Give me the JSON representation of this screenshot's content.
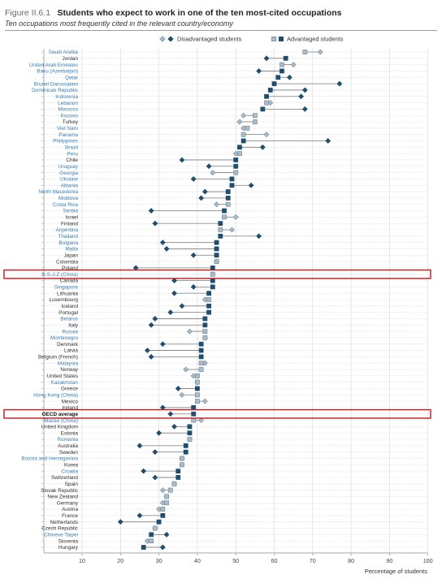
{
  "figure": {
    "label": "Figure II.6.1",
    "title": "Students who expect to work in one of the ten most-cited occupations",
    "subtitle": "Ten occupations most frequently cited in the relevant country/economy"
  },
  "colors": {
    "advantaged": "#1f4e6e",
    "disadvantaged": "#1f4e6e",
    "advantaged_light": "#a9bccb",
    "disadvantaged_light": "#a9bccb",
    "highlight_box": "#c0171f",
    "label_highlight": "#3a7fb5"
  },
  "chart_data": {
    "type": "scatter",
    "orientation": "horizontal-dot-plot",
    "title": "Students who expect to work in one of the ten most-cited occupations",
    "subtitle": "Ten occupations most frequently cited in the relevant country/economy",
    "xlabel": "Percentage of students",
    "ylabel": "",
    "xlim": [
      0,
      100
    ],
    "xticks": [
      10,
      20,
      30,
      40,
      50,
      60,
      70,
      80,
      90,
      100
    ],
    "grid": "horizontal dotted",
    "legend": {
      "placement": "top-center",
      "entries": [
        {
          "key": "dis",
          "label": "Disadvantaged students"
        },
        {
          "key": "adv",
          "label": "Advantaged students"
        }
      ]
    },
    "highlighted_rows": [
      "B-S-J-Z (China)",
      "OECD average"
    ],
    "rows": [
      {
        "name": "Saudi Arabia",
        "adv": 68,
        "dis": 72,
        "sig": false,
        "hl": true
      },
      {
        "name": "Jordan",
        "adv": 63,
        "dis": 58,
        "sig": true,
        "hl": false
      },
      {
        "name": "United Arab Emirates",
        "adv": 62,
        "dis": 65,
        "sig": false,
        "hl": true
      },
      {
        "name": "Baku (Azerbaijan)",
        "adv": 62,
        "dis": 56,
        "sig": true,
        "hl": true
      },
      {
        "name": "Qatar",
        "adv": 61,
        "dis": 64,
        "sig": true,
        "hl": true
      },
      {
        "name": "Brunei Darussalam",
        "adv": 60,
        "dis": 77,
        "sig": true,
        "hl": true
      },
      {
        "name": "Dominican Republic",
        "adv": 59,
        "dis": 68,
        "sig": true,
        "hl": true
      },
      {
        "name": "Indonesia",
        "adv": 58,
        "dis": 67,
        "sig": true,
        "hl": true
      },
      {
        "name": "Lebanon",
        "adv": 58,
        "dis": 59,
        "sig": false,
        "hl": true
      },
      {
        "name": "Morocco",
        "adv": 57,
        "dis": 68,
        "sig": true,
        "hl": true
      },
      {
        "name": "Kosovo",
        "adv": 55,
        "dis": 52,
        "sig": false,
        "hl": true
      },
      {
        "name": "Turkey",
        "adv": 55,
        "dis": 51,
        "sig": false,
        "hl": false
      },
      {
        "name": "Viet Nam",
        "adv": 53,
        "dis": 52,
        "sig": false,
        "hl": true
      },
      {
        "name": "Panama",
        "adv": 52,
        "dis": 58,
        "sig": false,
        "hl": true
      },
      {
        "name": "Philippines",
        "adv": 52,
        "dis": 74,
        "sig": true,
        "hl": true
      },
      {
        "name": "Brazil",
        "adv": 51,
        "dis": 57,
        "sig": true,
        "hl": true
      },
      {
        "name": "Peru",
        "adv": 51,
        "dis": 50,
        "sig": false,
        "hl": true
      },
      {
        "name": "Chile",
        "adv": 50,
        "dis": 36,
        "sig": true,
        "hl": false
      },
      {
        "name": "Uruguay",
        "adv": 50,
        "dis": 43,
        "sig": true,
        "hl": true
      },
      {
        "name": "Georgia",
        "adv": 50,
        "dis": 44,
        "sig": false,
        "hl": true
      },
      {
        "name": "Ukraine",
        "adv": 49,
        "dis": 39,
        "sig": true,
        "hl": true
      },
      {
        "name": "Albania",
        "adv": 49,
        "dis": 54,
        "sig": true,
        "hl": true
      },
      {
        "name": "North Macedonia",
        "adv": 48,
        "dis": 42,
        "sig": true,
        "hl": true
      },
      {
        "name": "Moldova",
        "adv": 48,
        "dis": 41,
        "sig": true,
        "hl": true
      },
      {
        "name": "Costa Rica",
        "adv": 48,
        "dis": 45,
        "sig": false,
        "hl": true
      },
      {
        "name": "Serbia",
        "adv": 47,
        "dis": 28,
        "sig": true,
        "hl": true
      },
      {
        "name": "Israel",
        "adv": 47,
        "dis": 50,
        "sig": false,
        "hl": false
      },
      {
        "name": "Finland",
        "adv": 46,
        "dis": 29,
        "sig": true,
        "hl": false
      },
      {
        "name": "Argentina",
        "adv": 46,
        "dis": 49,
        "sig": false,
        "hl": true
      },
      {
        "name": "Thailand",
        "adv": 46,
        "dis": 56,
        "sig": true,
        "hl": true
      },
      {
        "name": "Bulgaria",
        "adv": 45,
        "dis": 31,
        "sig": true,
        "hl": true
      },
      {
        "name": "Malta",
        "adv": 45,
        "dis": 32,
        "sig": true,
        "hl": true
      },
      {
        "name": "Japan",
        "adv": 45,
        "dis": 39,
        "sig": true,
        "hl": false
      },
      {
        "name": "Colombia",
        "adv": 45,
        "dis": 45,
        "sig": false,
        "hl": false
      },
      {
        "name": "Poland",
        "adv": 44,
        "dis": 24,
        "sig": true,
        "hl": false
      },
      {
        "name": "B-S-J-Z (China)",
        "adv": 44,
        "dis": 44,
        "sig": false,
        "hl": true
      },
      {
        "name": "Canada",
        "adv": 44,
        "dis": 34,
        "sig": true,
        "hl": false
      },
      {
        "name": "Singapore",
        "adv": 44,
        "dis": 39,
        "sig": true,
        "hl": true
      },
      {
        "name": "Lithuania",
        "adv": 43,
        "dis": 34,
        "sig": true,
        "hl": false
      },
      {
        "name": "Luxembourg",
        "adv": 43,
        "dis": 42,
        "sig": false,
        "hl": false
      },
      {
        "name": "Iceland",
        "adv": 43,
        "dis": 36,
        "sig": true,
        "hl": false
      },
      {
        "name": "Portugal",
        "adv": 43,
        "dis": 33,
        "sig": true,
        "hl": false
      },
      {
        "name": "Belarus",
        "adv": 42,
        "dis": 29,
        "sig": true,
        "hl": true
      },
      {
        "name": "Italy",
        "adv": 42,
        "dis": 28,
        "sig": true,
        "hl": false
      },
      {
        "name": "Russia",
        "adv": 42,
        "dis": 38,
        "sig": false,
        "hl": true
      },
      {
        "name": "Montenegro",
        "adv": 42,
        "dis": 42,
        "sig": false,
        "hl": true
      },
      {
        "name": "Denmark",
        "adv": 41,
        "dis": 31,
        "sig": true,
        "hl": false
      },
      {
        "name": "Latvia",
        "adv": 41,
        "dis": 27,
        "sig": true,
        "hl": false
      },
      {
        "name": "Belgium (French)",
        "adv": 41,
        "dis": 28,
        "sig": true,
        "hl": false
      },
      {
        "name": "Malaysia",
        "adv": 41,
        "dis": 42,
        "sig": false,
        "hl": true
      },
      {
        "name": "Norway",
        "adv": 41,
        "dis": 37,
        "sig": false,
        "hl": false
      },
      {
        "name": "United States",
        "adv": 40,
        "dis": 39,
        "sig": false,
        "hl": false
      },
      {
        "name": "Kazakhstan",
        "adv": 40,
        "dis": 40,
        "sig": false,
        "hl": true
      },
      {
        "name": "Greece",
        "adv": 40,
        "dis": 35,
        "sig": true,
        "hl": false
      },
      {
        "name": "Hong Kong (China)",
        "adv": 40,
        "dis": 36,
        "sig": false,
        "hl": true
      },
      {
        "name": "Mexico",
        "adv": 40,
        "dis": 42,
        "sig": false,
        "hl": false
      },
      {
        "name": "Ireland",
        "adv": 39,
        "dis": 31,
        "sig": true,
        "hl": false
      },
      {
        "name": "OECD average",
        "adv": 39,
        "dis": 33,
        "sig": true,
        "hl": false,
        "bold": true
      },
      {
        "name": "Macao (China)",
        "adv": 39,
        "dis": 41,
        "sig": false,
        "hl": true
      },
      {
        "name": "United Kingdom",
        "adv": 38,
        "dis": 34,
        "sig": true,
        "hl": false
      },
      {
        "name": "Estonia",
        "adv": 38,
        "dis": 30,
        "sig": true,
        "hl": false
      },
      {
        "name": "Romania",
        "adv": 38,
        "dis": 38,
        "sig": false,
        "hl": true
      },
      {
        "name": "Australia",
        "adv": 37,
        "dis": 25,
        "sig": true,
        "hl": false
      },
      {
        "name": "Sweden",
        "adv": 37,
        "dis": 29,
        "sig": true,
        "hl": false
      },
      {
        "name": "Bosnia and Herzegovina",
        "adv": 36,
        "dis": 36,
        "sig": false,
        "hl": true
      },
      {
        "name": "Korea",
        "adv": 36,
        "dis": 36,
        "sig": false,
        "hl": false
      },
      {
        "name": "Croatia",
        "adv": 35,
        "dis": 26,
        "sig": true,
        "hl": true
      },
      {
        "name": "Switzerland",
        "adv": 35,
        "dis": 29,
        "sig": true,
        "hl": false
      },
      {
        "name": "Spain",
        "adv": 34,
        "dis": 34,
        "sig": false,
        "hl": false
      },
      {
        "name": "Slovak Republic",
        "adv": 33,
        "dis": 31,
        "sig": false,
        "hl": false
      },
      {
        "name": "New Zealand",
        "adv": 32,
        "dis": 32,
        "sig": false,
        "hl": false
      },
      {
        "name": "Germany",
        "adv": 32,
        "dis": 31,
        "sig": false,
        "hl": false
      },
      {
        "name": "Austria",
        "adv": 31,
        "dis": 30,
        "sig": false,
        "hl": false
      },
      {
        "name": "France",
        "adv": 31,
        "dis": 25,
        "sig": true,
        "hl": false
      },
      {
        "name": "Netherlands",
        "adv": 30,
        "dis": 20,
        "sig": true,
        "hl": false
      },
      {
        "name": "Czech Republic",
        "adv": 29,
        "dis": 29,
        "sig": false,
        "hl": false
      },
      {
        "name": "Chinese Taipei",
        "adv": 28,
        "dis": 32,
        "sig": true,
        "hl": true
      },
      {
        "name": "Slovenia",
        "adv": 28,
        "dis": 27,
        "sig": false,
        "hl": false
      },
      {
        "name": "Hungary",
        "adv": 26,
        "dis": 31,
        "sig": true,
        "hl": false
      }
    ]
  }
}
